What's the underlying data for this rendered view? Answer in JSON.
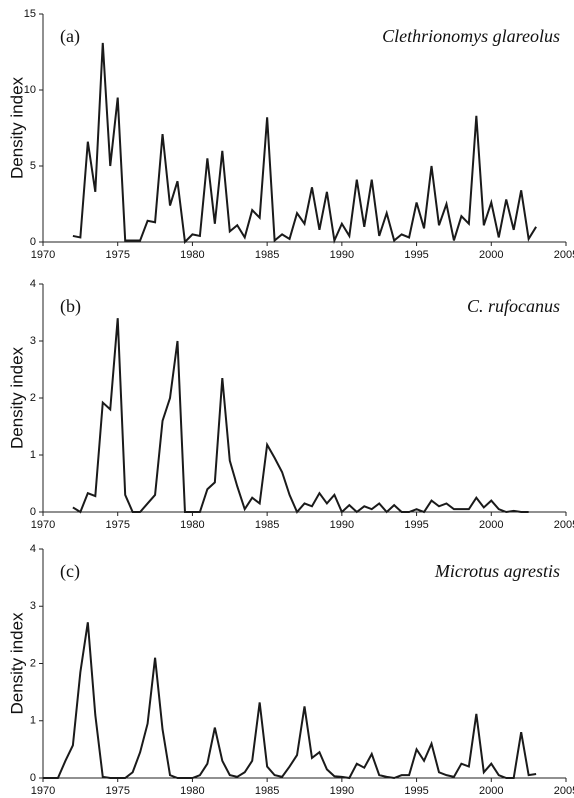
{
  "chart_data": [
    {
      "type": "line",
      "panel_label": "(a)",
      "title": "Clethrionomys glareolus",
      "y_label": "Density index",
      "color": "#1a1a1a",
      "xlim": [
        1970,
        2005
      ],
      "xticks": [
        1970,
        1975,
        1980,
        1985,
        1990,
        1995,
        2000,
        2005
      ],
      "ylim": [
        0,
        15
      ],
      "yticks": [
        0,
        5,
        10,
        15
      ],
      "x": [
        1972,
        1972.5,
        1973,
        1973.5,
        1974,
        1974.5,
        1975,
        1975.5,
        1976,
        1976.5,
        1977,
        1977.5,
        1978,
        1978.5,
        1979,
        1979.5,
        1980,
        1980.5,
        1981,
        1981.5,
        1982,
        1982.5,
        1983,
        1983.5,
        1984,
        1984.5,
        1985,
        1985.5,
        1986,
        1986.5,
        1987,
        1987.5,
        1988,
        1988.5,
        1989,
        1989.5,
        1990,
        1990.5,
        1991,
        1991.5,
        1992,
        1992.5,
        1993,
        1993.5,
        1994,
        1994.5,
        1995,
        1995.5,
        1996,
        1996.5,
        1997,
        1997.5,
        1998,
        1998.5,
        1999,
        1999.5,
        2000,
        2000.5,
        2001,
        2001.5,
        2002,
        2002.5,
        2003
      ],
      "values": [
        0.4,
        0.3,
        6.6,
        3.3,
        13.1,
        5.0,
        9.5,
        0.1,
        0.1,
        0.1,
        1.4,
        1.3,
        7.1,
        2.4,
        4.0,
        0.0,
        0.5,
        0.4,
        5.5,
        1.2,
        6.0,
        0.7,
        1.1,
        0.3,
        2.1,
        1.6,
        8.2,
        0.1,
        0.5,
        0.2,
        1.9,
        1.2,
        3.6,
        0.8,
        3.3,
        0.1,
        1.2,
        0.4,
        4.1,
        1.0,
        4.1,
        0.4,
        1.9,
        0.1,
        0.5,
        0.3,
        2.6,
        0.9,
        5.0,
        1.1,
        2.5,
        0.1,
        1.7,
        1.2,
        8.3,
        1.1,
        2.6,
        0.3,
        2.8,
        0.8,
        3.4,
        0.2,
        1.0
      ]
    },
    {
      "type": "line",
      "panel_label": "(b)",
      "title": "C. rufocanus",
      "y_label": "Density index",
      "color": "#1a1a1a",
      "xlim": [
        1970,
        2005
      ],
      "xticks": [
        1970,
        1975,
        1980,
        1985,
        1990,
        1995,
        2000,
        2005
      ],
      "ylim": [
        0,
        4
      ],
      "yticks": [
        0,
        1,
        2,
        3,
        4
      ],
      "x": [
        1972,
        1972.5,
        1973,
        1973.5,
        1974,
        1974.5,
        1975,
        1975.5,
        1976,
        1976.5,
        1977,
        1977.5,
        1978,
        1978.5,
        1979,
        1979.5,
        1980,
        1980.5,
        1981,
        1981.5,
        1982,
        1982.5,
        1983,
        1983.5,
        1984,
        1984.5,
        1985,
        1985.5,
        1986,
        1986.5,
        1987,
        1987.5,
        1988,
        1988.5,
        1989,
        1989.5,
        1990,
        1990.5,
        1991,
        1991.5,
        1992,
        1992.5,
        1993,
        1993.5,
        1994,
        1994.5,
        1995,
        1995.5,
        1996,
        1996.5,
        1997,
        1997.5,
        1998,
        1998.5,
        1999,
        1999.5,
        2000,
        2000.5,
        2001,
        2001.5,
        2002,
        2002.5
      ],
      "values": [
        0.08,
        0.0,
        0.33,
        0.28,
        1.92,
        1.8,
        3.4,
        0.3,
        0.0,
        0.0,
        0.15,
        0.3,
        1.6,
        2.0,
        3.0,
        0.0,
        0.0,
        0.0,
        0.4,
        0.52,
        2.35,
        0.9,
        0.45,
        0.05,
        0.25,
        0.15,
        1.18,
        0.95,
        0.7,
        0.3,
        0.0,
        0.15,
        0.1,
        0.33,
        0.15,
        0.3,
        0.0,
        0.12,
        0.0,
        0.1,
        0.05,
        0.15,
        0.0,
        0.12,
        0.0,
        0.0,
        0.05,
        0.0,
        0.2,
        0.1,
        0.15,
        0.05,
        0.05,
        0.05,
        0.25,
        0.08,
        0.2,
        0.05,
        0.0,
        0.02,
        0.0,
        0.0
      ]
    },
    {
      "type": "line",
      "panel_label": "(c)",
      "title": "Microtus agrestis",
      "y_label": "Density index",
      "color": "#1a1a1a",
      "xlim": [
        1970,
        2005
      ],
      "xticks": [
        1970,
        1975,
        1980,
        1985,
        1990,
        1995,
        2000,
        2005
      ],
      "ylim": [
        0,
        4
      ],
      "yticks": [
        0,
        1,
        2,
        3,
        4
      ],
      "x": [
        1970,
        1970.5,
        1971,
        1971.5,
        1972,
        1972.5,
        1973,
        1973.5,
        1974,
        1974.5,
        1975,
        1975.5,
        1976,
        1976.5,
        1977,
        1977.5,
        1978,
        1978.5,
        1979,
        1979.5,
        1980,
        1980.5,
        1981,
        1981.5,
        1982,
        1982.5,
        1983,
        1983.5,
        1984,
        1984.5,
        1985,
        1985.5,
        1986,
        1986.5,
        1987,
        1987.5,
        1988,
        1988.5,
        1989,
        1989.5,
        1990,
        1990.5,
        1991,
        1991.5,
        1992,
        1992.5,
        1993,
        1993.5,
        1994,
        1994.5,
        1995,
        1995.5,
        1996,
        1996.5,
        1997,
        1997.5,
        1998,
        1998.5,
        1999,
        1999.5,
        2000,
        2000.5,
        2001,
        2001.5,
        2002,
        2002.5,
        2003
      ],
      "values": [
        0,
        0,
        0,
        0.3,
        0.57,
        1.85,
        2.72,
        1.1,
        0.02,
        0,
        0,
        0,
        0.1,
        0.45,
        0.95,
        2.1,
        0.85,
        0.05,
        0,
        0,
        0,
        0.05,
        0.25,
        0.88,
        0.3,
        0.05,
        0.02,
        0.1,
        0.3,
        1.32,
        0.2,
        0.05,
        0.02,
        0.2,
        0.4,
        1.25,
        0.35,
        0.45,
        0.15,
        0.03,
        0.02,
        0.0,
        0.25,
        0.18,
        0.42,
        0.05,
        0.02,
        0.0,
        0.05,
        0.05,
        0.5,
        0.3,
        0.6,
        0.1,
        0.05,
        0.02,
        0.25,
        0.2,
        1.12,
        0.1,
        0.25,
        0.05,
        0.0,
        0.0,
        0.8,
        0.05,
        0.07
      ]
    }
  ]
}
